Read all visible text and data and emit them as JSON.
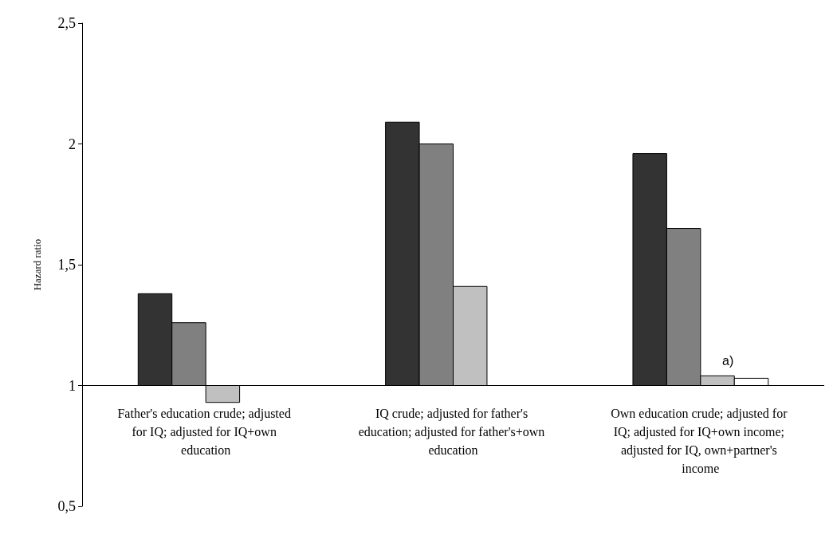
{
  "chart_data": {
    "type": "bar",
    "ylabel": "Hazard ratio",
    "categories": [
      "Father's education crude; adjusted for IQ; adjusted for IQ+own education",
      "IQ crude; adjusted for father's education; adjusted for father's+own education",
      "Own education crude; adjusted for IQ; adjusted for IQ+own income; adjusted for IQ, own+partner's income"
    ],
    "series": [
      {
        "color": "#333333",
        "base": [
          1,
          1,
          1
        ],
        "values": [
          0.38,
          1.09,
          0.96
        ]
      },
      {
        "color": "#808080",
        "base": [
          1,
          1,
          1
        ],
        "values": [
          0.26,
          1.0,
          0.65
        ]
      },
      {
        "color": "#c0c0c0",
        "base": [
          1,
          1,
          1
        ],
        "values": [
          -0.07,
          0.41,
          0.04
        ]
      },
      {
        "color": "#ffffff",
        "base": [
          null,
          null,
          1
        ],
        "values": [
          null,
          null,
          0.03
        ]
      }
    ],
    "ylim": [
      0.5,
      2.5
    ],
    "yticks": [
      {
        "value": 0.5,
        "label": "0,5"
      },
      1,
      {
        "value": 1.5,
        "label": "1,5"
      },
      2,
      {
        "value": 2.5,
        "label": "2,5"
      }
    ],
    "annotations": [
      "a)"
    ],
    "grid": false
  }
}
